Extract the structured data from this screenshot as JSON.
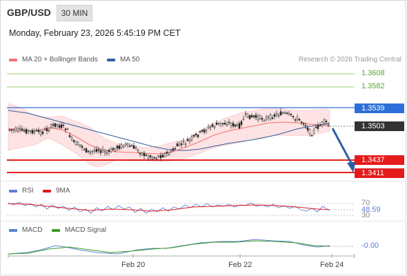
{
  "header": {
    "pair": "GBP/USD",
    "timeframe": "30 MIN",
    "datetime": "Monday, February 23, 2026 5:45:19 PM CET"
  },
  "legend": {
    "ma20": "MA 20 + Bollinger Bands",
    "ma50": "MA 50",
    "credit": "Research © 2026 Trading Central"
  },
  "levels": {
    "green_high": "1.3608",
    "green_low": "1.3582",
    "blue_resistance": "1.3539",
    "current": "1.3503",
    "red_support_1": "1.3437",
    "red_support_2": "1.3411"
  },
  "rsi": {
    "label": "RSI",
    "ma_label": "9MA",
    "level_high": "70",
    "value": "48.59",
    "level_low": "30"
  },
  "macd": {
    "label": "MACD",
    "signal_label": "MACD Signal",
    "value": "-0.00"
  },
  "x_axis": [
    "Feb 20",
    "Feb 22",
    "Feb 24"
  ],
  "colors": {
    "ma20": "#f27272",
    "ma50": "#2f5f9e",
    "resistance": "#2d6fd8",
    "support": "#e51c1c",
    "target": "#7cbf4a",
    "rsi_line": "#5b7fd6",
    "rsi_ma": "#e01818",
    "macd": "#5b7fd6",
    "macd_signal": "#3a9a22",
    "current_tag": "#333333"
  },
  "chart_data": {
    "type": "candlestick",
    "y_unit": "GBP/USD price",
    "price_range": [
      1.34,
      1.362
    ],
    "forecast": "downward arrow toward 1.3411"
  }
}
